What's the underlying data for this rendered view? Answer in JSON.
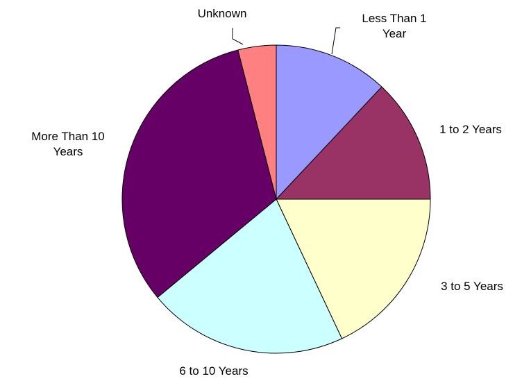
{
  "chart_data": {
    "type": "pie",
    "categories": [
      "Less Than 1 Year",
      "1 to 2 Years",
      "3 to 5 Years",
      "6 to 10 Years",
      "More Than 10 Years",
      "Unknown"
    ],
    "values": [
      12,
      13,
      18,
      21,
      32,
      4
    ],
    "colors": [
      "#9999ff",
      "#993366",
      "#ffffcc",
      "#ccffff",
      "#660066",
      "#ff8080"
    ]
  }
}
